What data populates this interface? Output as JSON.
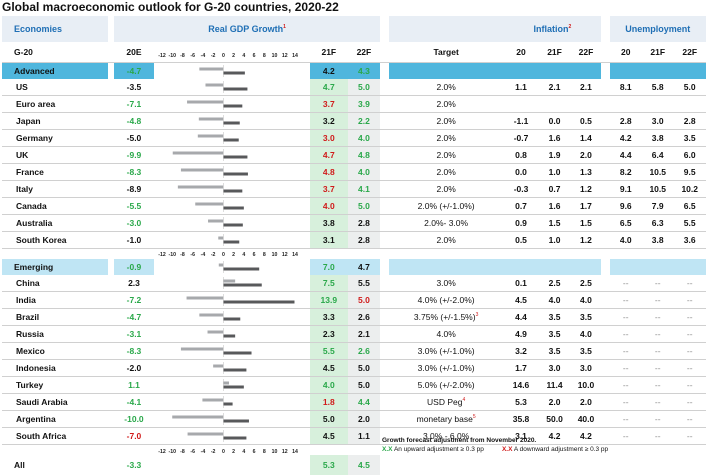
{
  "title": "Global macroeconomic outlook for G-20 countries, 2020-22",
  "headers": {
    "economies": "Economies",
    "gdp": "Real GDP Growth",
    "gdp_note": "1",
    "inflation": "Inflation",
    "inflation_note": "2",
    "unemployment": "Unemployment",
    "g20": "G-20",
    "y20e": "20E",
    "y21f": "21F",
    "y22f": "22F",
    "target": "Target",
    "i20": "20",
    "i21f": "21F",
    "i22f": "22F",
    "u20": "20",
    "u21f": "21F",
    "u22f": "22F"
  },
  "axis_ticks": [
    "-12",
    "-10",
    "-8",
    "-6",
    "-4",
    "-2",
    "0",
    "2",
    "4",
    "6",
    "8",
    "10",
    "12",
    "14"
  ],
  "colors": {
    "accent": "#4fb6dd",
    "upward": "#2aa84a",
    "downward": "#d01a1a",
    "bar_2020": "#a7a9ac",
    "bar_2021": "#58595b"
  },
  "chart_data": {
    "type": "bar",
    "xlim": [
      -12,
      14
    ],
    "series": [
      {
        "name": "20E",
        "values": [
          -4.7,
          -3.5,
          -7.1,
          -4.8,
          -5.0,
          -9.9,
          -8.3,
          -8.9,
          -5.5,
          -3.0,
          -1.0,
          -0.9,
          2.3,
          -7.2,
          -4.7,
          -3.1,
          -8.3,
          -2.0,
          1.1,
          -4.1,
          -10.0,
          -7.0
        ]
      },
      {
        "name": "21F",
        "values": [
          4.2,
          4.7,
          3.7,
          3.2,
          3.0,
          4.7,
          4.8,
          3.7,
          4.0,
          3.8,
          3.1,
          7.0,
          7.5,
          13.9,
          3.3,
          2.3,
          5.5,
          4.5,
          4.0,
          1.8,
          5.0,
          4.5
        ]
      }
    ]
  },
  "groups": [
    {
      "label": "Advanced",
      "gdp20": "-4.7",
      "gdp21": "4.2",
      "gdp22": "4.3",
      "c20": "green",
      "c21": "bk",
      "c22": "green",
      "chart_index": 0,
      "rows": [
        {
          "name": "US",
          "gdp20": "-3.5",
          "c20": "bk",
          "gdp21": "4.7",
          "c21": "green",
          "gdp22": "5.0",
          "c22": "green",
          "target": "2.0%",
          "tnote": "",
          "i20": "1.1",
          "i21": "2.1",
          "i22": "2.1",
          "u20": "8.1",
          "u21": "5.8",
          "u22": "5.0",
          "chart_index": 1
        },
        {
          "name": "Euro area",
          "gdp20": "-7.1",
          "c20": "green",
          "gdp21": "3.7",
          "c21": "red",
          "gdp22": "3.9",
          "c22": "green",
          "target": "2.0%",
          "tnote": "",
          "i20": "",
          "i21": "",
          "i22": "",
          "u20": "",
          "u21": "",
          "u22": "",
          "chart_index": 2
        },
        {
          "name": "Japan",
          "gdp20": "-4.8",
          "c20": "green",
          "gdp21": "3.2",
          "c21": "bk",
          "gdp22": "2.2",
          "c22": "green",
          "target": "2.0%",
          "tnote": "",
          "i20": "-1.1",
          "i21": "0.0",
          "i22": "0.5",
          "u20": "2.8",
          "u21": "3.0",
          "u22": "2.8",
          "chart_index": 3
        },
        {
          "name": "Germany",
          "gdp20": "-5.0",
          "c20": "bk",
          "gdp21": "3.0",
          "c21": "red",
          "gdp22": "4.0",
          "c22": "green",
          "target": "2.0%",
          "tnote": "",
          "i20": "-0.7",
          "i21": "1.6",
          "i22": "1.4",
          "u20": "4.2",
          "u21": "3.8",
          "u22": "3.5",
          "chart_index": 4
        },
        {
          "name": "UK",
          "gdp20": "-9.9",
          "c20": "green",
          "gdp21": "4.7",
          "c21": "red",
          "gdp22": "4.8",
          "c22": "green",
          "target": "2.0%",
          "tnote": "",
          "i20": "0.8",
          "i21": "1.9",
          "i22": "2.0",
          "u20": "4.4",
          "u21": "6.4",
          "u22": "6.0",
          "chart_index": 5
        },
        {
          "name": "France",
          "gdp20": "-8.3",
          "c20": "green",
          "gdp21": "4.8",
          "c21": "red",
          "gdp22": "4.0",
          "c22": "green",
          "target": "2.0%",
          "tnote": "",
          "i20": "0.0",
          "i21": "1.0",
          "i22": "1.3",
          "u20": "8.2",
          "u21": "10.5",
          "u22": "9.5",
          "chart_index": 6
        },
        {
          "name": "Italy",
          "gdp20": "-8.9",
          "c20": "bk",
          "gdp21": "3.7",
          "c21": "red",
          "gdp22": "4.1",
          "c22": "green",
          "target": "2.0%",
          "tnote": "",
          "i20": "-0.3",
          "i21": "0.7",
          "i22": "1.2",
          "u20": "9.1",
          "u21": "10.5",
          "u22": "10.2",
          "chart_index": 7
        },
        {
          "name": "Canada",
          "gdp20": "-5.5",
          "c20": "green",
          "gdp21": "4.0",
          "c21": "red",
          "gdp22": "5.0",
          "c22": "green",
          "target": "2.0% (+/-1.0%)",
          "tnote": "",
          "i20": "0.7",
          "i21": "1.6",
          "i22": "1.7",
          "u20": "9.6",
          "u21": "7.9",
          "u22": "6.5",
          "chart_index": 8
        },
        {
          "name": "Australia",
          "gdp20": "-3.0",
          "c20": "green",
          "gdp21": "3.8",
          "c21": "bk",
          "gdp22": "2.8",
          "c22": "bk",
          "target": "2.0%- 3.0%",
          "tnote": "",
          "i20": "0.9",
          "i21": "1.5",
          "i22": "1.5",
          "u20": "6.5",
          "u21": "6.3",
          "u22": "5.5",
          "chart_index": 9
        },
        {
          "name": "South Korea",
          "gdp20": "-1.0",
          "c20": "bk",
          "gdp21": "3.1",
          "c21": "bk",
          "gdp22": "2.8",
          "c22": "bk",
          "target": "2.0%",
          "tnote": "",
          "i20": "0.5",
          "i21": "1.0",
          "i22": "1.2",
          "u20": "4.0",
          "u21": "3.8",
          "u22": "3.6",
          "chart_index": 10
        }
      ]
    },
    {
      "label": "Emerging",
      "gdp20": "-0.9",
      "gdp21": "7.0",
      "gdp22": "4.7",
      "c20": "green",
      "c21": "green",
      "c22": "bk",
      "chart_index": 11,
      "rows": [
        {
          "name": "China",
          "gdp20": "2.3",
          "c20": "bk",
          "gdp21": "7.5",
          "c21": "green",
          "gdp22": "5.5",
          "c22": "bk",
          "target": "3.0%",
          "tnote": "",
          "i20": "0.1",
          "i21": "2.5",
          "i22": "2.5",
          "u20": "--",
          "u21": "--",
          "u22": "--",
          "chart_index": 12
        },
        {
          "name": "India",
          "gdp20": "-7.2",
          "c20": "green",
          "gdp21": "13.9",
          "c21": "green",
          "gdp22": "5.0",
          "c22": "red",
          "target": "4.0% (+/-2.0%)",
          "tnote": "",
          "i20": "4.5",
          "i21": "4.0",
          "i22": "4.0",
          "u20": "--",
          "u21": "--",
          "u22": "--",
          "chart_index": 13
        },
        {
          "name": "Brazil",
          "gdp20": "-4.7",
          "c20": "green",
          "gdp21": "3.3",
          "c21": "bk",
          "gdp22": "2.6",
          "c22": "bk",
          "target": "3.75% (+/-1.5%)",
          "tnote": "3",
          "i20": "4.4",
          "i21": "3.5",
          "i22": "3.5",
          "u20": "--",
          "u21": "--",
          "u22": "--",
          "chart_index": 14
        },
        {
          "name": "Russia",
          "gdp20": "-3.1",
          "c20": "green",
          "gdp21": "2.3",
          "c21": "bk",
          "gdp22": "2.1",
          "c22": "bk",
          "target": "4.0%",
          "tnote": "",
          "i20": "4.9",
          "i21": "3.5",
          "i22": "4.0",
          "u20": "--",
          "u21": "--",
          "u22": "--",
          "chart_index": 15
        },
        {
          "name": "Mexico",
          "gdp20": "-8.3",
          "c20": "green",
          "gdp21": "5.5",
          "c21": "green",
          "gdp22": "2.6",
          "c22": "green",
          "target": "3.0% (+/-1.0%)",
          "tnote": "",
          "i20": "3.2",
          "i21": "3.5",
          "i22": "3.5",
          "u20": "--",
          "u21": "--",
          "u22": "--",
          "chart_index": 16
        },
        {
          "name": "Indonesia",
          "gdp20": "-2.0",
          "c20": "bk",
          "gdp21": "4.5",
          "c21": "bk",
          "gdp22": "5.0",
          "c22": "bk",
          "target": "3.0% (+/-1.0%)",
          "tnote": "",
          "i20": "1.7",
          "i21": "3.0",
          "i22": "3.0",
          "u20": "--",
          "u21": "--",
          "u22": "--",
          "chart_index": 17
        },
        {
          "name": "Turkey",
          "gdp20": "1.1",
          "c20": "green",
          "gdp21": "4.0",
          "c21": "green",
          "gdp22": "5.0",
          "c22": "bk",
          "target": "5.0% (+/-2.0%)",
          "tnote": "",
          "i20": "14.6",
          "i21": "11.4",
          "i22": "10.0",
          "u20": "--",
          "u21": "--",
          "u22": "--",
          "chart_index": 18
        },
        {
          "name": "Saudi Arabia",
          "gdp20": "-4.1",
          "c20": "green",
          "gdp21": "1.8",
          "c21": "red",
          "gdp22": "4.4",
          "c22": "green",
          "target": "USD Peg",
          "tnote": "4",
          "i20": "5.3",
          "i21": "2.0",
          "i22": "2.0",
          "u20": "--",
          "u21": "--",
          "u22": "--",
          "chart_index": 19
        },
        {
          "name": "Argentina",
          "gdp20": "-10.0",
          "c20": "green",
          "gdp21": "5.0",
          "c21": "bk",
          "gdp22": "2.0",
          "c22": "bk",
          "target": "monetary base",
          "tnote": "5",
          "i20": "35.8",
          "i21": "50.0",
          "i22": "40.0",
          "u20": "--",
          "u21": "--",
          "u22": "--",
          "chart_index": 20
        },
        {
          "name": "South Africa",
          "gdp20": "-7.0",
          "c20": "red",
          "gdp21": "4.5",
          "c21": "bk",
          "gdp22": "1.1",
          "c22": "bk",
          "target": "3.0% - 6.0%",
          "tnote": "",
          "i20": "3.1",
          "i21": "4.2",
          "i22": "4.2",
          "u20": "--",
          "u21": "--",
          "u22": "--",
          "chart_index": 21
        }
      ]
    }
  ],
  "all_row": {
    "name": "All",
    "gdp20": "-3.3",
    "gdp21": "5.3",
    "gdp22": "4.5"
  },
  "legend": {
    "title": "Growth forecast adjustment from November 2020.",
    "up_key": "X.X",
    "up_text": "An upward adjustment ≥ 0.3 pp",
    "down_key": "X.X",
    "down_text": "A downward adjustment ≥ 0.3 pp"
  }
}
